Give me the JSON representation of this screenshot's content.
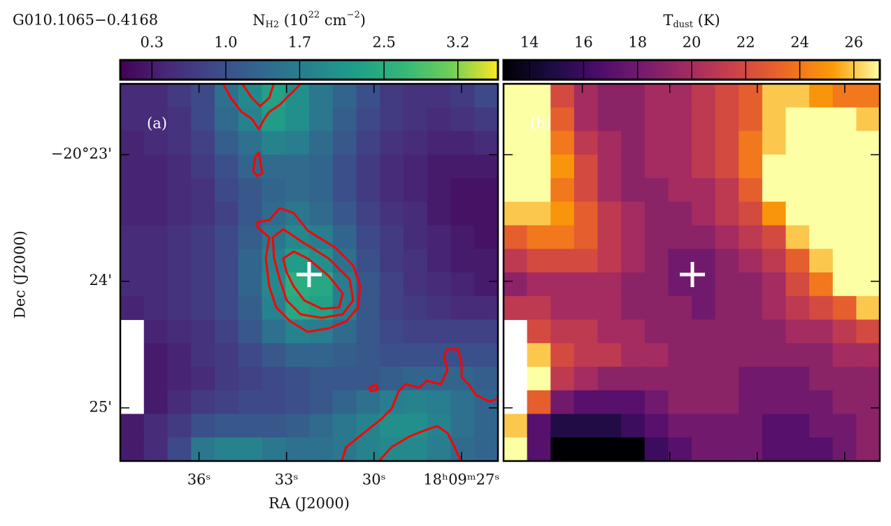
{
  "source": "G010.1065−0.4168",
  "chart_data": [
    {
      "type": "heatmap",
      "panel_label": "(a)",
      "colormap": "viridis",
      "colorbar_label": [
        "N",
        "H2",
        " (10",
        "22",
        " cm",
        "−2",
        ")"
      ],
      "colorbar_label_style": [
        "base",
        "sub",
        "base",
        "sup",
        "base",
        "sup",
        "base"
      ],
      "clim": [
        0.0,
        3.58
      ],
      "cticks": [
        0.3,
        {
          "value": 1,
          "label": "1.0"
        },
        1.7,
        2.5,
        3.2
      ],
      "x_label": "RA (J2000)",
      "y_label": "Dec (J2000)",
      "xlim": [
        38.7,
        25.75
      ],
      "ylim": [
        22.44,
        25.42
      ],
      "xticks": [
        {
          "value": 36,
          "label": "36ˢ"
        },
        {
          "value": 33,
          "label": "33ˢ"
        },
        {
          "value": 30,
          "label": "30ˢ"
        },
        {
          "value": 27,
          "label": "18ʰ09ᵐ27ˢ"
        }
      ],
      "yticks": [
        {
          "value": 23,
          "label": "−20°23'"
        },
        {
          "value": 24,
          "label": "24'"
        },
        {
          "value": 25,
          "label": "25'"
        }
      ],
      "values": [
        [
          0.5,
          0.5,
          0.7,
          0.9,
          1.5,
          1.9,
          2.3,
          2.0,
          1.6,
          1.3,
          1.0,
          0.7,
          0.6,
          0.6,
          0.7,
          0.9
        ],
        [
          0.5,
          0.5,
          0.6,
          0.9,
          1.4,
          1.8,
          2.2,
          2.0,
          1.6,
          1.2,
          0.9,
          0.7,
          0.6,
          0.5,
          0.6,
          0.7
        ],
        [
          0.4,
          0.5,
          0.6,
          0.8,
          1.2,
          1.5,
          1.8,
          1.7,
          1.4,
          1.1,
          0.8,
          0.6,
          0.5,
          0.4,
          0.4,
          0.5
        ],
        [
          0.4,
          0.4,
          0.5,
          0.7,
          1.0,
          1.3,
          1.4,
          1.4,
          1.3,
          1.0,
          0.7,
          0.5,
          0.4,
          0.3,
          0.3,
          0.3
        ],
        [
          0.4,
          0.4,
          0.5,
          0.6,
          0.9,
          1.1,
          1.3,
          1.4,
          1.3,
          1.0,
          0.7,
          0.5,
          0.4,
          0.3,
          0.2,
          0.2
        ],
        [
          0.4,
          0.4,
          0.5,
          0.6,
          0.8,
          1.1,
          1.4,
          1.6,
          1.4,
          1.1,
          0.8,
          0.6,
          0.5,
          0.3,
          0.2,
          0.2
        ],
        [
          0.5,
          0.5,
          0.6,
          0.7,
          0.9,
          1.2,
          1.6,
          1.9,
          1.7,
          1.3,
          0.9,
          0.7,
          0.5,
          0.4,
          0.3,
          0.2
        ],
        [
          0.5,
          0.5,
          0.6,
          0.7,
          0.9,
          1.3,
          1.8,
          2.2,
          2.0,
          1.5,
          1.0,
          0.7,
          0.6,
          0.4,
          0.3,
          0.3
        ],
        [
          0.5,
          0.5,
          0.6,
          0.7,
          0.9,
          1.3,
          1.9,
          2.5,
          2.4,
          1.7,
          1.1,
          0.8,
          0.6,
          0.5,
          0.4,
          0.3
        ],
        [
          0.4,
          0.5,
          0.6,
          0.7,
          0.9,
          1.2,
          1.8,
          2.4,
          2.3,
          1.7,
          1.1,
          0.8,
          0.7,
          0.6,
          0.5,
          0.5
        ],
        [
          null,
          0.4,
          0.5,
          0.6,
          0.8,
          1.1,
          1.5,
          1.8,
          1.7,
          1.4,
          1.1,
          0.9,
          0.8,
          0.8,
          0.8,
          0.8
        ],
        [
          null,
          0.3,
          0.4,
          0.6,
          0.7,
          0.9,
          1.1,
          1.3,
          1.3,
          1.2,
          1.1,
          1.0,
          1.0,
          1.0,
          1.0,
          1.0
        ],
        [
          null,
          0.3,
          0.4,
          0.5,
          0.7,
          0.8,
          0.9,
          1.0,
          1.1,
          1.1,
          1.1,
          1.2,
          1.3,
          1.3,
          1.3,
          1.2
        ],
        [
          null,
          0.3,
          0.5,
          0.7,
          0.8,
          0.9,
          0.9,
          1.0,
          1.1,
          1.3,
          1.5,
          1.7,
          1.8,
          1.7,
          1.5,
          1.3
        ],
        [
          0.3,
          0.5,
          0.7,
          1.0,
          1.1,
          1.1,
          1.1,
          1.2,
          1.4,
          1.6,
          1.8,
          2.0,
          2.0,
          1.8,
          1.5,
          1.3
        ],
        [
          0.3,
          0.5,
          0.9,
          1.6,
          1.8,
          1.8,
          1.6,
          1.5,
          1.5,
          1.6,
          1.8,
          1.9,
          1.9,
          1.7,
          1.4,
          1.3
        ]
      ]
    },
    {
      "type": "heatmap",
      "panel_label": "(b)",
      "colormap": "inferno",
      "colorbar_label": [
        "T",
        "dust",
        " (K)"
      ],
      "colorbar_label_style": [
        "base",
        "sub",
        "base"
      ],
      "clim": [
        13.04,
        26.96
      ],
      "cticks": [
        14,
        16,
        18,
        20,
        22,
        24,
        26
      ],
      "values": [
        [
          27,
          27,
          22,
          20,
          19,
          19,
          20,
          20,
          21,
          22,
          23,
          26,
          26,
          25,
          24,
          24
        ],
        [
          27,
          27,
          23,
          20,
          19,
          19,
          20,
          20,
          21,
          22,
          23,
          26,
          27,
          27,
          27,
          26
        ],
        [
          27,
          27,
          24,
          21,
          20,
          19,
          20,
          20,
          21,
          22,
          24,
          26,
          27,
          27,
          27,
          27
        ],
        [
          27,
          27,
          25,
          22,
          20,
          19,
          20,
          20,
          21,
          22,
          24,
          27,
          27,
          27,
          27,
          27
        ],
        [
          27,
          27,
          24,
          22,
          20,
          19,
          19,
          20,
          20,
          21,
          23,
          27,
          27,
          27,
          27,
          27
        ],
        [
          26,
          26,
          25,
          23,
          21,
          20,
          19,
          19,
          20,
          21,
          22,
          25,
          27,
          27,
          27,
          27
        ],
        [
          23,
          24,
          24,
          23,
          21,
          20,
          19,
          19,
          19,
          20,
          21,
          22,
          26,
          27,
          27,
          27
        ],
        [
          21,
          22,
          22,
          22,
          21,
          20,
          19,
          18,
          18,
          19,
          20,
          21,
          23,
          26,
          27,
          27
        ],
        [
          19,
          20,
          20,
          20,
          20,
          19,
          19,
          18,
          18,
          19,
          19,
          20,
          22,
          24,
          27,
          27
        ],
        [
          21,
          21,
          20,
          20,
          20,
          19,
          19,
          19,
          18,
          19,
          19,
          20,
          21,
          22,
          23,
          26
        ],
        [
          null,
          22,
          21,
          21,
          20,
          20,
          19,
          19,
          19,
          19,
          19,
          19,
          20,
          20,
          21,
          22
        ],
        [
          null,
          26,
          22,
          21,
          21,
          20,
          20,
          19,
          19,
          19,
          19,
          19,
          19,
          19,
          20,
          20
        ],
        [
          null,
          27,
          21,
          20,
          19,
          19,
          19,
          19,
          19,
          19,
          18,
          18,
          18,
          19,
          19,
          19
        ],
        [
          null,
          23,
          18,
          17,
          17,
          17,
          18,
          19,
          19,
          19,
          18,
          18,
          18,
          18,
          19,
          19
        ],
        [
          26,
          17,
          15,
          15,
          15,
          16,
          17,
          18,
          18,
          18,
          18,
          17,
          17,
          18,
          18,
          19
        ],
        [
          27,
          17,
          13,
          13,
          13,
          13,
          16,
          17,
          18,
          18,
          18,
          17,
          17,
          17,
          18,
          19
        ]
      ]
    }
  ]
}
